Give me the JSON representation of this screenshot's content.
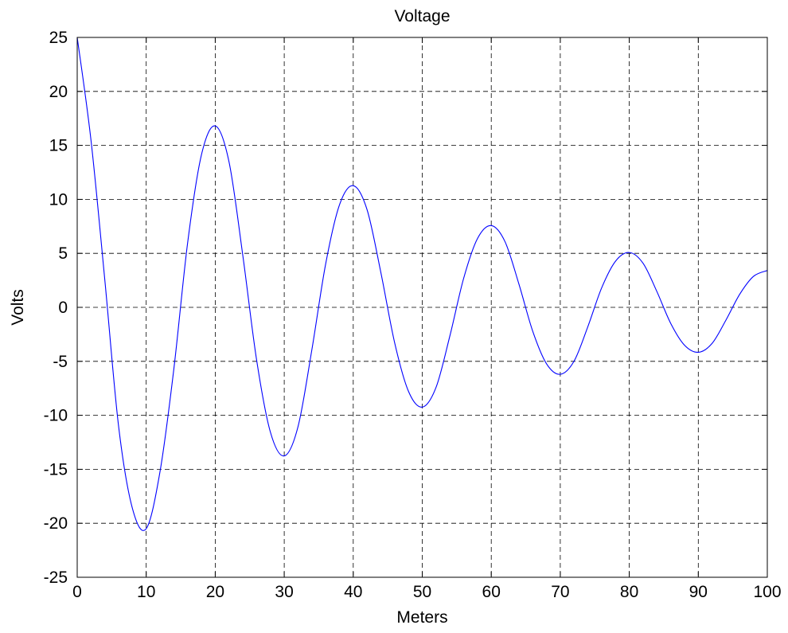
{
  "chart_data": {
    "type": "line",
    "title": "Voltage",
    "xlabel": "Meters",
    "ylabel": "Volts",
    "xlim": [
      0,
      100
    ],
    "ylim": [
      -25,
      25
    ],
    "xticks": [
      0,
      10,
      20,
      30,
      40,
      50,
      60,
      70,
      80,
      90,
      100
    ],
    "yticks": [
      25,
      20,
      15,
      10,
      5,
      0,
      -5,
      -10,
      -15,
      -20,
      -25
    ],
    "grid": true,
    "series": [
      {
        "color": "#0000ff",
        "x": [
          0,
          2,
          4,
          6,
          8,
          10,
          12,
          14,
          16,
          18,
          20,
          22,
          24,
          26,
          28,
          30,
          32,
          34,
          36,
          38,
          40,
          42,
          44,
          46,
          48,
          50,
          52,
          54,
          56,
          58,
          60,
          62,
          64,
          66,
          68,
          70,
          72,
          74,
          76,
          78,
          80,
          82,
          84,
          86,
          88,
          90,
          92,
          94,
          96,
          98,
          100
        ],
        "y": [
          25,
          15.46,
          2.54,
          -11.03,
          -18.62,
          -20.5,
          -15.21,
          -5.73,
          5.97,
          14.12,
          16.8,
          13.47,
          4.79,
          -4.89,
          -11.57,
          -13.76,
          -11.04,
          -3.94,
          4.01,
          9.48,
          11.27,
          9.05,
          3.23,
          -3.28,
          -7.77,
          -9.24,
          -7.41,
          -2.65,
          2.69,
          6.37,
          7.57,
          6.07,
          2.17,
          -2.2,
          -5.22,
          -6.2,
          -4.98,
          -1.78,
          1.81,
          4.27,
          5.08,
          4.08,
          1.46,
          -1.48,
          -3.5,
          -4.16,
          -3.34,
          -1.19,
          1.21,
          2.87,
          3.41
        ]
      }
    ]
  }
}
